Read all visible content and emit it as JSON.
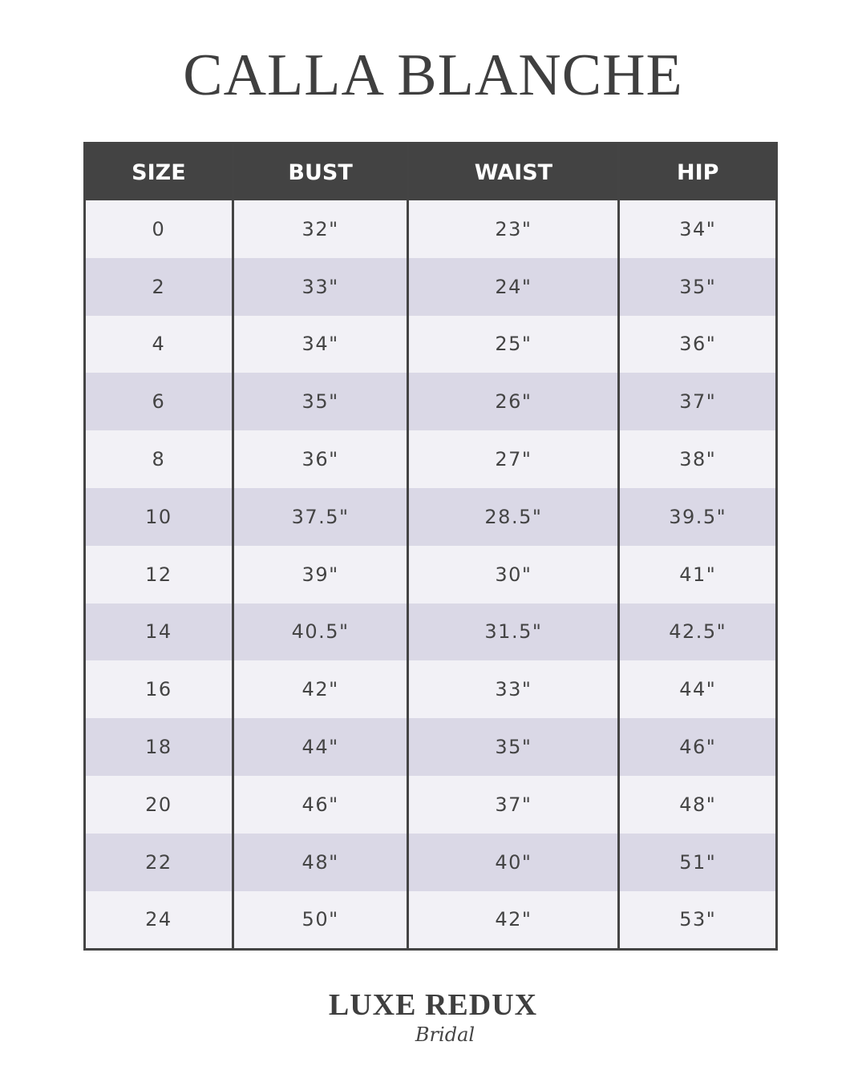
{
  "title": "CALLA BLANCHE",
  "table": {
    "headers": [
      "SIZE",
      "BUST",
      "WAIST",
      "HIP"
    ],
    "rows": [
      [
        "0",
        "32\"",
        "23\"",
        "34\""
      ],
      [
        "2",
        "33\"",
        "24\"",
        "35\""
      ],
      [
        "4",
        "34\"",
        "25\"",
        "36\""
      ],
      [
        "6",
        "35\"",
        "26\"",
        "37\""
      ],
      [
        "8",
        "36\"",
        "27\"",
        "38\""
      ],
      [
        "10",
        "37.5\"",
        "28.5\"",
        "39.5\""
      ],
      [
        "12",
        "39\"",
        "30\"",
        "41\""
      ],
      [
        "14",
        "40.5\"",
        "31.5\"",
        "42.5\""
      ],
      [
        "16",
        "42\"",
        "33\"",
        "44\""
      ],
      [
        "18",
        "44\"",
        "35\"",
        "46\""
      ],
      [
        "20",
        "46\"",
        "37\"",
        "48\""
      ],
      [
        "22",
        "48\"",
        "40\"",
        "51\""
      ],
      [
        "24",
        "50\"",
        "42\"",
        "53\""
      ]
    ]
  },
  "logo": {
    "main": "LUXE REDUX",
    "sub": "Bridal"
  },
  "colors": {
    "header_bg": "#434343",
    "row_light": "#f2f1f6",
    "row_dark": "#dad8e6"
  }
}
